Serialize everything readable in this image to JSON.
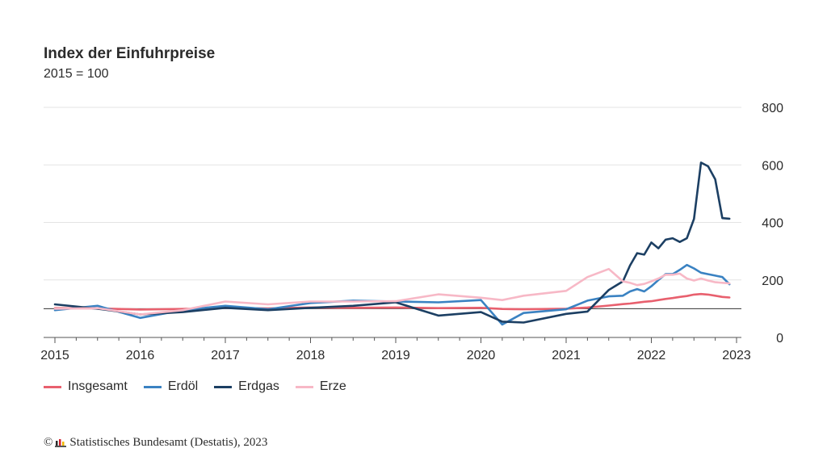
{
  "title": "Index der Einfuhrpreise",
  "subtitle": "2015 = 100",
  "copyright_symbol": "©",
  "source": "Statistisches Bundesamt (Destatis), 2023",
  "chart_data": {
    "type": "line",
    "title": "Index der Einfuhrpreise",
    "subtitle": "2015 = 100",
    "xlabel": "",
    "ylabel": "",
    "ylim": [
      0,
      800
    ],
    "xlim": [
      2015,
      2023
    ],
    "y_ticks": [
      0,
      200,
      400,
      600,
      800
    ],
    "x_ticks": [
      "2015",
      "2016",
      "2017",
      "2018",
      "2019",
      "2020",
      "2021",
      "2022",
      "2023"
    ],
    "reference_line": 100,
    "grid": "horizontal",
    "y_axis_position": "right",
    "legend_position": "bottom-left",
    "x": [
      "2015-01",
      "2015-07",
      "2016-01",
      "2016-07",
      "2017-01",
      "2017-07",
      "2018-01",
      "2018-07",
      "2019-01",
      "2019-07",
      "2020-01",
      "2020-04",
      "2020-07",
      "2021-01",
      "2021-04",
      "2021-07",
      "2021-09",
      "2021-10",
      "2021-11",
      "2021-12",
      "2022-01",
      "2022-02",
      "2022-03",
      "2022-04",
      "2022-05",
      "2022-06",
      "2022-07",
      "2022-08",
      "2022-09",
      "2022-10",
      "2022-11",
      "2022-12"
    ],
    "series": [
      {
        "name": "Insgesamt",
        "color": "#e8606e",
        "values": [
          102,
          101,
          97,
          99,
          103,
          101,
          104,
          103,
          104,
          102,
          103,
          99,
          98,
          100,
          104,
          111,
          116,
          118,
          121,
          124,
          126,
          130,
          134,
          137,
          141,
          144,
          149,
          151,
          149,
          145,
          141,
          139
        ]
      },
      {
        "name": "Erdöl",
        "color": "#3a82c2",
        "values": [
          95,
          110,
          68,
          95,
          110,
          98,
          120,
          128,
          125,
          122,
          130,
          45,
          85,
          98,
          128,
          143,
          145,
          160,
          168,
          160,
          178,
          200,
          220,
          220,
          235,
          252,
          240,
          225,
          220,
          215,
          210,
          185
        ]
      },
      {
        "name": "Erdgas",
        "color": "#1c3f63",
        "values": [
          115,
          100,
          80,
          88,
          103,
          95,
          103,
          110,
          122,
          76,
          88,
          55,
          52,
          82,
          90,
          165,
          195,
          250,
          293,
          288,
          330,
          310,
          340,
          345,
          332,
          345,
          412,
          608,
          595,
          550,
          415,
          413
        ]
      },
      {
        "name": "Erze",
        "color": "#f7b8c6",
        "values": [
          100,
          102,
          80,
          95,
          125,
          115,
          125,
          125,
          126,
          150,
          138,
          130,
          145,
          162,
          210,
          238,
          195,
          190,
          182,
          186,
          195,
          205,
          218,
          218,
          222,
          205,
          198,
          205,
          198,
          192,
          190,
          188
        ]
      }
    ]
  }
}
